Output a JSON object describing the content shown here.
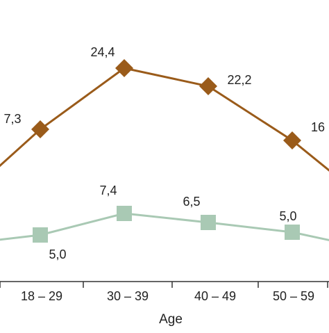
{
  "chart_data": {
    "type": "line",
    "title": "",
    "xlabel": "Age",
    "ylabel": "",
    "categories": [
      "",
      "18 – 29",
      "30 – 39",
      "40 – 49",
      "50 – 59",
      ""
    ],
    "ylim": [
      0,
      30
    ],
    "grid": false,
    "legend": "none",
    "series": [
      {
        "name": "",
        "color": "#9A5B1A",
        "marker": "diamond",
        "values": [
          null,
          7.3,
          24.4,
          22.2,
          16,
          null
        ],
        "labels": [
          "",
          "7,3",
          "24,4",
          "22,2",
          "16",
          ""
        ]
      },
      {
        "name": "",
        "color": "#A9C9B4",
        "marker": "square",
        "values": [
          null,
          5.0,
          7.4,
          6.5,
          5.0,
          null
        ],
        "labels": [
          "",
          "5,0",
          "7,4",
          "6,5",
          "5,0",
          ""
        ]
      }
    ]
  }
}
